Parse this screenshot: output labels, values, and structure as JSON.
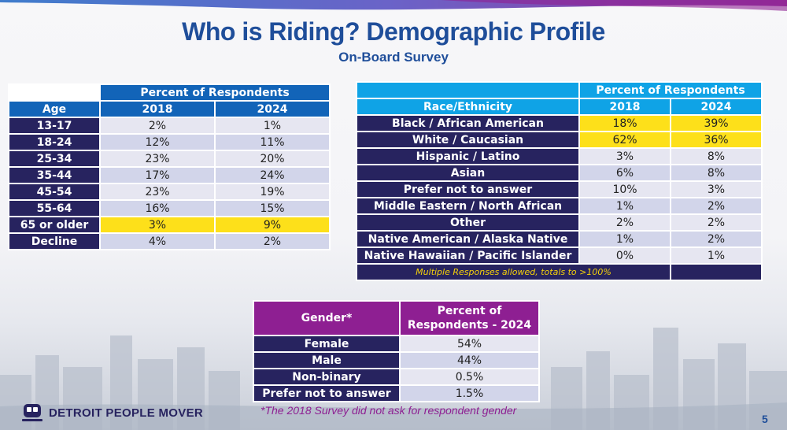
{
  "title": "Who is Riding? Demographic Profile",
  "subtitle": "On-Board Survey",
  "age_table": {
    "group_header": "Percent of Respondents",
    "col_label": "Age",
    "years": [
      "2018",
      "2024"
    ],
    "rows": [
      {
        "label": "13-17",
        "v2018": "2%",
        "v2024": "1%",
        "highlight": false
      },
      {
        "label": "18-24",
        "v2018": "12%",
        "v2024": "11%",
        "highlight": false
      },
      {
        "label": "25-34",
        "v2018": "23%",
        "v2024": "20%",
        "highlight": false
      },
      {
        "label": "35-44",
        "v2018": "17%",
        "v2024": "24%",
        "highlight": false
      },
      {
        "label": "45-54",
        "v2018": "23%",
        "v2024": "19%",
        "highlight": false
      },
      {
        "label": "55-64",
        "v2018": "16%",
        "v2024": "15%",
        "highlight": false
      },
      {
        "label": "65 or older",
        "v2018": "3%",
        "v2024": "9%",
        "highlight": true
      },
      {
        "label": "Decline",
        "v2018": "4%",
        "v2024": "2%",
        "highlight": false
      }
    ]
  },
  "race_table": {
    "group_header": "Percent of Respondents",
    "col_label": "Race/Ethnicity",
    "years": [
      "2018",
      "2024"
    ],
    "rows": [
      {
        "label": "Black / African American",
        "v2018": "18%",
        "v2024": "39%",
        "highlight": true
      },
      {
        "label": "White / Caucasian",
        "v2018": "62%",
        "v2024": "36%",
        "highlight": true
      },
      {
        "label": "Hispanic / Latino",
        "v2018": "3%",
        "v2024": "8%",
        "highlight": false
      },
      {
        "label": "Asian",
        "v2018": "6%",
        "v2024": "8%",
        "highlight": false
      },
      {
        "label": "Prefer not to answer",
        "v2018": "10%",
        "v2024": "3%",
        "highlight": false
      },
      {
        "label": "Middle Eastern / North African",
        "v2018": "1%",
        "v2024": "2%",
        "highlight": false
      },
      {
        "label": "Other",
        "v2018": "2%",
        "v2024": "2%",
        "highlight": false
      },
      {
        "label": "Native American / Alaska Native",
        "v2018": "1%",
        "v2024": "2%",
        "highlight": false
      },
      {
        "label": "Native Hawaiian / Pacific Islander",
        "v2018": "0%",
        "v2024": "1%",
        "highlight": false
      }
    ],
    "note": "Multiple Responses allowed, totals to >100%"
  },
  "gender_table": {
    "col_label": "Gender*",
    "value_header_line1": "Percent of",
    "value_header_line2": "Respondents - 2024",
    "rows": [
      {
        "label": "Female",
        "value": "54%"
      },
      {
        "label": "Male",
        "value": "44%"
      },
      {
        "label": "Non-binary",
        "value": "0.5%"
      },
      {
        "label": "Prefer not to answer",
        "value": "1.5%"
      }
    ]
  },
  "footnote": "*The 2018 Survey did not ask for respondent gender",
  "logo_text": "DETROIT PEOPLE MOVER",
  "page_number": "5",
  "colors": {
    "title_blue": "#1f4e9a",
    "navy": "#27235f",
    "age_header_blue": "#1264b8",
    "race_header_cyan": "#0fa3e6",
    "gender_header_purple": "#8e1f92",
    "highlight_yellow": "#fde01a"
  },
  "icons": {
    "logo": "train-icon"
  }
}
